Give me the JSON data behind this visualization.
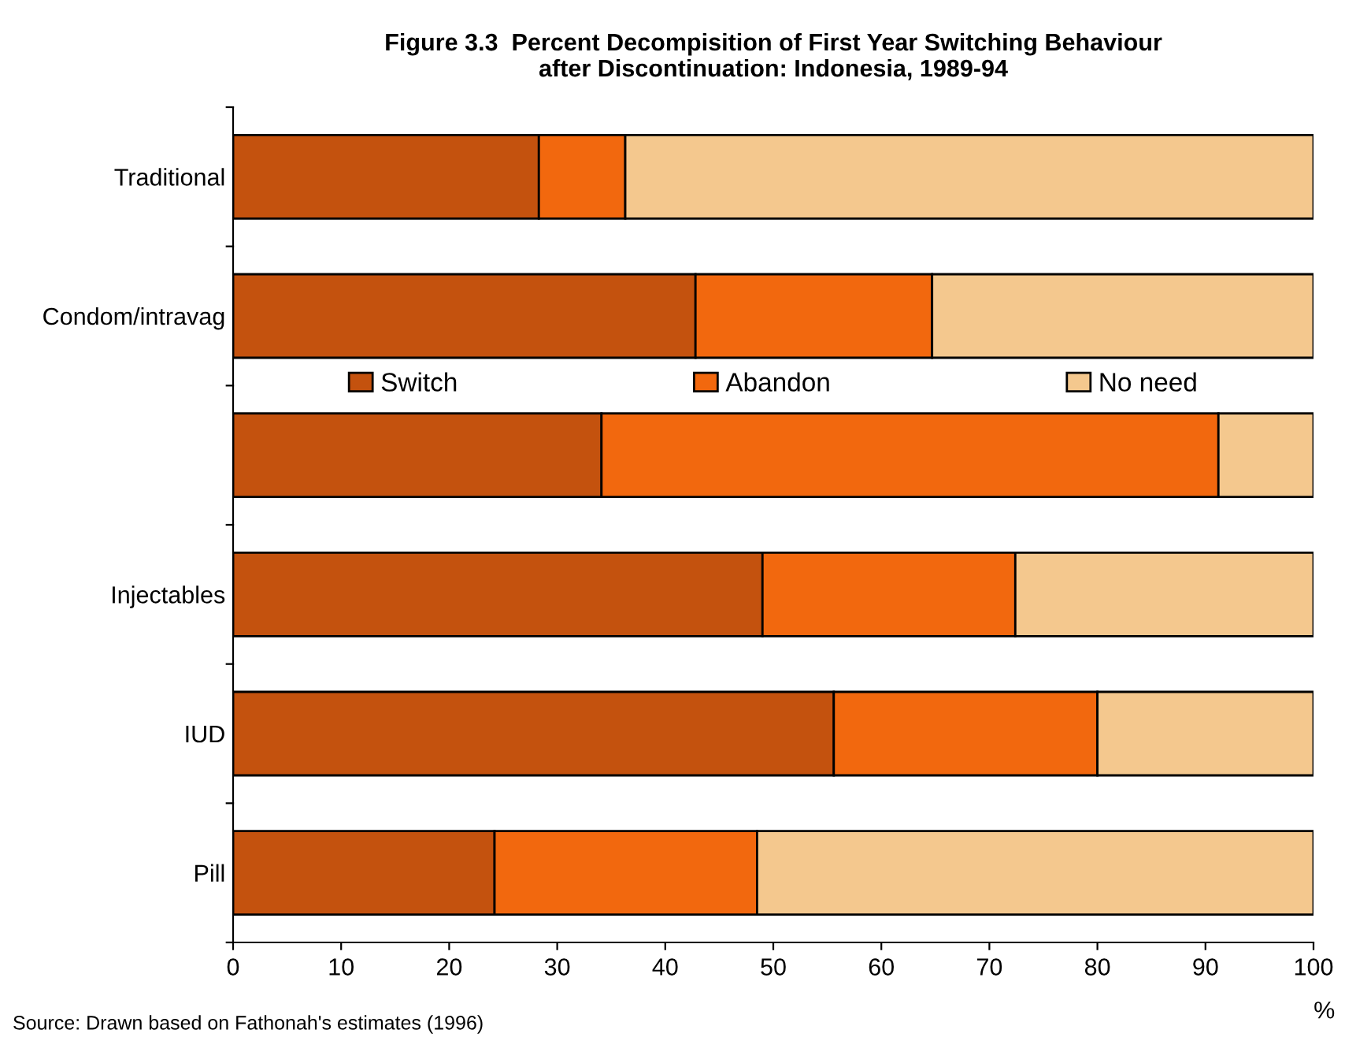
{
  "chart_data": {
    "type": "bar",
    "orientation": "horizontal",
    "stacked": true,
    "title": "Figure 3.3  Percent Decompisition of First Year Switching Behaviour\nafter Discontinuation: Indonesia, 1989-94",
    "xlabel": "%",
    "categories": [
      "Traditional",
      "Condom/intravag",
      null,
      "Injectables",
      "IUD",
      "Pill"
    ],
    "series": [
      {
        "name": "Switch",
        "color": "#c4520e",
        "values": [
          28.3,
          42.8,
          34.1,
          49.0,
          55.6,
          24.2
        ]
      },
      {
        "name": "Abandon",
        "color": "#f2680e",
        "values": [
          8.0,
          21.9,
          57.1,
          23.4,
          24.4,
          24.3
        ]
      },
      {
        "name": "No need",
        "color": "#f4c88e",
        "values": [
          63.7,
          35.3,
          8.8,
          27.6,
          20.0,
          51.5
        ]
      }
    ],
    "xlim": [
      0,
      100
    ],
    "xticks": [
      0,
      10,
      20,
      30,
      40,
      50,
      60,
      70,
      80,
      90,
      100
    ],
    "grid": false,
    "legend": "top",
    "annotations": [
      "Source: Drawn based on Fathonah's estimates (1996)"
    ]
  }
}
